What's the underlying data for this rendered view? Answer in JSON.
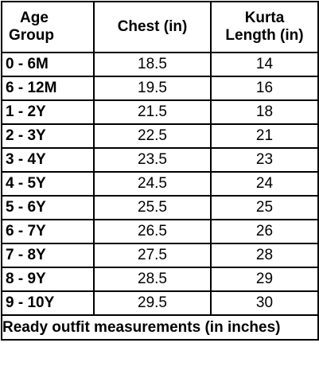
{
  "table": {
    "headers": {
      "age_line1": "Age",
      "age_line2": "Group",
      "chest": "Chest (in)",
      "kurta_line1": "Kurta",
      "kurta_line2": "Length (in)"
    },
    "rows": [
      {
        "age": "0 - 6M",
        "chest": "18.5",
        "kurta": "14"
      },
      {
        "age": "6 - 12M",
        "chest": "19.5",
        "kurta": "16"
      },
      {
        "age": "1 - 2Y",
        "chest": "21.5",
        "kurta": "18"
      },
      {
        "age": "2 - 3Y",
        "chest": "22.5",
        "kurta": "21"
      },
      {
        "age": "3 - 4Y",
        "chest": "23.5",
        "kurta": "23"
      },
      {
        "age": "4 - 5Y",
        "chest": "24.5",
        "kurta": "24"
      },
      {
        "age": "5 - 6Y",
        "chest": "25.5",
        "kurta": "25"
      },
      {
        "age": "6 - 7Y",
        "chest": "26.5",
        "kurta": "26"
      },
      {
        "age": "7 - 8Y",
        "chest": "27.5",
        "kurta": "28"
      },
      {
        "age": "8 - 9Y",
        "chest": "28.5",
        "kurta": "29"
      },
      {
        "age": "9 - 10Y",
        "chest": "29.5",
        "kurta": "30"
      }
    ],
    "footer": "Ready outfit measurements (in inches)"
  }
}
